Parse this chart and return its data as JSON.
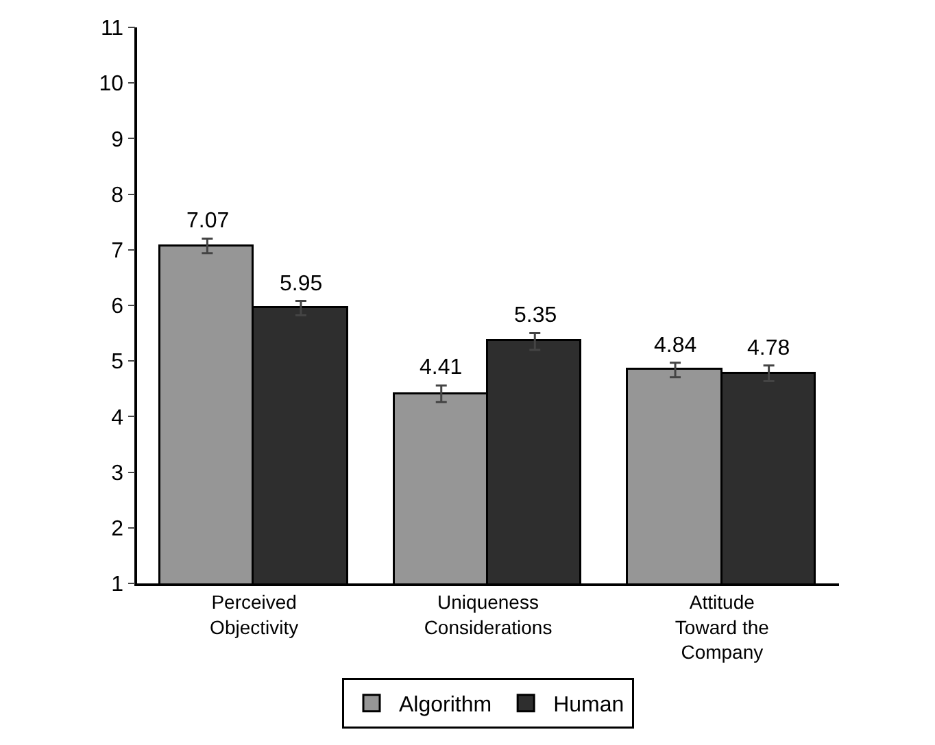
{
  "chart_data": {
    "type": "bar",
    "categories": [
      "Perceived Objectivity",
      "Uniqueness Considerations",
      "Attitude Toward the Company"
    ],
    "series": [
      {
        "name": "Algorithm",
        "color": "#969696",
        "values": [
          7.07,
          4.41,
          4.84
        ],
        "errors": [
          0.13,
          0.15,
          0.13
        ]
      },
      {
        "name": "Human",
        "color": "#2e2e2e",
        "values": [
          5.95,
          5.35,
          4.78
        ],
        "errors": [
          0.13,
          0.15,
          0.14
        ]
      }
    ],
    "ylim": [
      1,
      11
    ],
    "yticks": [
      1,
      2,
      3,
      4,
      5,
      6,
      7,
      8,
      9,
      10,
      11
    ],
    "legend": "bottom",
    "data_labels": true
  }
}
